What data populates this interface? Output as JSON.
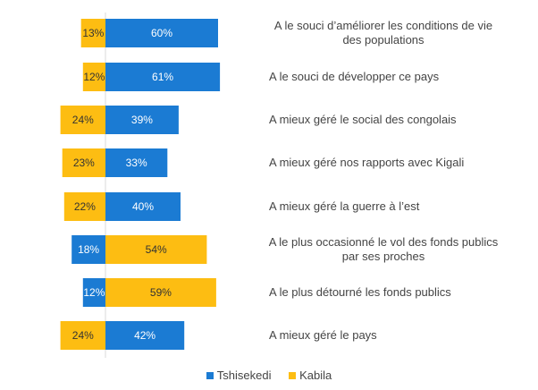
{
  "chart_data": {
    "type": "bar",
    "orientation": "horizontal-diverging",
    "categories": [
      [
        "A le souci d’améliorer les conditions de vie",
        "des populations"
      ],
      [
        "A le souci de développer ce pays"
      ],
      [
        "A mieux géré le social des congolais"
      ],
      [
        "A mieux géré nos rapports avec Kigali"
      ],
      [
        "A mieux géré la guerre à l’est"
      ],
      [
        "A le plus occasionné le vol des fonds publics",
        "par ses proches"
      ],
      [
        "A le plus détourné les fonds publics"
      ],
      [
        "A mieux géré le pays"
      ]
    ],
    "series": [
      {
        "name": "Tshisekedi",
        "color": "#1B7BD3",
        "values": [
          60,
          61,
          39,
          33,
          40,
          18,
          12,
          42
        ]
      },
      {
        "name": "Kabila",
        "color": "#FDBD12",
        "values": [
          13,
          12,
          24,
          23,
          22,
          54,
          59,
          24
        ]
      }
    ],
    "right_side_series": [
      "Tshisekedi",
      "Tshisekedi",
      "Tshisekedi",
      "Tshisekedi",
      "Tshisekedi",
      "Kabila",
      "Kabila",
      "Tshisekedi"
    ],
    "value_suffix": "%",
    "legend_position": "bottom"
  },
  "legend": {
    "tshisekedi": "Tshisekedi",
    "kabila": "Kabila"
  }
}
